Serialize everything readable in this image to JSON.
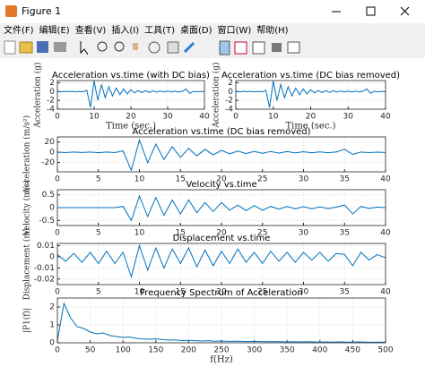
{
  "window": {
    "title": "Figure 1"
  },
  "menu": [
    "文件(F)",
    "编辑(E)",
    "查看(V)",
    "插入(I)",
    "工具(T)",
    "桌面(D)",
    "窗口(W)",
    "帮助(H)"
  ],
  "chart_data": [
    {
      "type": "line",
      "title": "Acceleration vs.time (with DC bias)",
      "x_label": "Time (sec.)",
      "y_label": "Acceleration (g)",
      "color": "#0072bd",
      "grid": true,
      "xlim": [
        0,
        40
      ],
      "xticks": [
        0,
        10,
        20,
        30,
        40
      ],
      "ylim": [
        -4,
        2.5
      ],
      "yticks": [
        -4,
        -2,
        0,
        2
      ],
      "x": [
        0,
        1,
        2,
        3,
        4,
        5,
        6,
        7,
        8,
        9,
        10,
        11,
        12,
        13,
        14,
        15,
        16,
        17,
        18,
        19,
        20,
        21,
        22,
        23,
        24,
        25,
        26,
        27,
        28,
        29,
        30,
        31,
        32,
        33,
        34,
        35,
        36,
        37,
        38,
        39,
        40
      ],
      "values": [
        0.05,
        -0.05,
        0.06,
        -0.04,
        0.05,
        -0.06,
        0.05,
        -0.05,
        0.3,
        -3.6,
        2.4,
        -2.0,
        1.6,
        -1.4,
        1.1,
        -1.0,
        0.8,
        -0.7,
        0.6,
        -0.5,
        0.4,
        -0.3,
        0.25,
        -0.25,
        0.2,
        -0.2,
        0.18,
        -0.15,
        0.15,
        -0.12,
        0.12,
        -0.1,
        0.1,
        -0.1,
        0.08,
        0.6,
        -0.4,
        0.06,
        -0.05,
        0.04,
        -0.03
      ]
    },
    {
      "type": "line",
      "title": "Acceleration vs.time (DC bias removed)",
      "x_label": "Time (sec.)",
      "y_label": "Acceleration (g)",
      "color": "#0072bd",
      "grid": true,
      "xlim": [
        0,
        40
      ],
      "xticks": [
        0,
        10,
        20,
        30,
        40
      ],
      "ylim": [
        -4,
        2.5
      ],
      "yticks": [
        -4,
        -2,
        0,
        2
      ],
      "x": [
        0,
        1,
        2,
        3,
        4,
        5,
        6,
        7,
        8,
        9,
        10,
        11,
        12,
        13,
        14,
        15,
        16,
        17,
        18,
        19,
        20,
        21,
        22,
        23,
        24,
        25,
        26,
        27,
        28,
        29,
        30,
        31,
        32,
        33,
        34,
        35,
        36,
        37,
        38,
        39,
        40
      ],
      "values": [
        0.05,
        -0.05,
        0.06,
        -0.04,
        0.05,
        -0.06,
        0.05,
        -0.05,
        0.3,
        -3.6,
        2.4,
        -2.0,
        1.6,
        -1.4,
        1.1,
        -1.0,
        0.8,
        -0.7,
        0.6,
        -0.5,
        0.4,
        -0.3,
        0.25,
        -0.25,
        0.2,
        -0.2,
        0.18,
        -0.15,
        0.15,
        -0.12,
        0.12,
        -0.1,
        0.1,
        -0.1,
        0.08,
        0.6,
        -0.4,
        0.06,
        -0.05,
        0.04,
        -0.03
      ]
    },
    {
      "type": "line",
      "title": "Acceleration vs.time (DC bias removed)",
      "y_label": "Acceleration (m/s²)",
      "color": "#0072bd",
      "grid": true,
      "xlim": [
        0,
        40
      ],
      "xticks": [
        0,
        5,
        10,
        15,
        20,
        25,
        30,
        35,
        40
      ],
      "ylim": [
        -38,
        30
      ],
      "yticks": [
        -20,
        0,
        20
      ],
      "x": [
        0,
        1,
        2,
        3,
        4,
        5,
        6,
        7,
        8,
        9,
        10,
        11,
        12,
        13,
        14,
        15,
        16,
        17,
        18,
        19,
        20,
        21,
        22,
        23,
        24,
        25,
        26,
        27,
        28,
        29,
        30,
        31,
        32,
        33,
        34,
        35,
        36,
        37,
        38,
        39,
        40
      ],
      "values": [
        0.5,
        -0.5,
        0.6,
        -0.4,
        0.5,
        -0.6,
        0.5,
        -0.5,
        3,
        -35,
        24,
        -20,
        16,
        -14,
        11,
        -10,
        8,
        -7,
        6,
        -5,
        4,
        -3,
        2.5,
        -2.5,
        2,
        -2,
        1.8,
        -1.5,
        1.5,
        -1.2,
        1.2,
        -1,
        1,
        -1,
        0.8,
        6,
        -4,
        0.6,
        -0.5,
        0.4,
        -0.3
      ]
    },
    {
      "type": "line",
      "title": "Velocity vs.time",
      "y_label": "Velocity (m/s)",
      "color": "#0072bd",
      "grid": true,
      "xlim": [
        0,
        40
      ],
      "xticks": [
        0,
        5,
        10,
        15,
        20,
        25,
        30,
        35,
        40
      ],
      "ylim": [
        -0.7,
        0.7
      ],
      "yticks": [
        -0.5,
        0,
        0.5
      ],
      "x": [
        0,
        1,
        2,
        3,
        4,
        5,
        6,
        7,
        8,
        9,
        10,
        11,
        12,
        13,
        14,
        15,
        16,
        17,
        18,
        19,
        20,
        21,
        22,
        23,
        24,
        25,
        26,
        27,
        28,
        29,
        30,
        31,
        32,
        33,
        34,
        35,
        36,
        37,
        38,
        39,
        40
      ],
      "values": [
        0,
        0,
        0,
        0,
        0,
        0,
        0,
        0,
        0.05,
        -0.5,
        0.45,
        -0.35,
        0.4,
        -0.3,
        0.3,
        -0.25,
        0.3,
        -0.2,
        0.2,
        -0.15,
        0.2,
        -0.1,
        0.1,
        -0.12,
        0.08,
        -0.1,
        0.05,
        -0.06,
        0.05,
        -0.05,
        0.04,
        -0.05,
        0.03,
        -0.04,
        0.02,
        0.1,
        -0.25,
        0.05,
        -0.03,
        0.02,
        0
      ]
    },
    {
      "type": "line",
      "title": "Displacement vs.time",
      "y_label": "Displacement (m)",
      "color": "#0072bd",
      "grid": true,
      "xlim": [
        0,
        40
      ],
      "xticks": [
        0,
        5,
        10,
        15,
        20,
        25,
        30,
        35,
        40
      ],
      "ylim": [
        -0.025,
        0.012
      ],
      "yticks": [
        -0.02,
        -0.01,
        0,
        0.01
      ],
      "x": [
        0,
        1,
        2,
        3,
        4,
        5,
        6,
        7,
        8,
        9,
        10,
        11,
        12,
        13,
        14,
        15,
        16,
        17,
        18,
        19,
        20,
        21,
        22,
        23,
        24,
        25,
        26,
        27,
        28,
        29,
        30,
        31,
        32,
        33,
        34,
        35,
        36,
        37,
        38,
        39,
        40
      ],
      "values": [
        0.002,
        -0.004,
        0.003,
        -0.005,
        0.004,
        -0.006,
        0.005,
        -0.006,
        0.004,
        -0.018,
        0.01,
        -0.012,
        0.008,
        -0.01,
        0.007,
        -0.006,
        0.008,
        -0.009,
        0.006,
        -0.008,
        0.005,
        -0.006,
        0.007,
        -0.005,
        0.004,
        -0.006,
        0.005,
        -0.004,
        0.004,
        -0.005,
        0.004,
        -0.003,
        0.004,
        -0.004,
        0.003,
        0.002,
        -0.008,
        0.004,
        -0.003,
        0.002,
        -0.001
      ]
    },
    {
      "type": "line",
      "title": "Frequency Spectrum of Acceleration",
      "x_label": "f(Hz)",
      "y_label": "|P1(f)|",
      "color": "#0072bd",
      "grid": true,
      "xlim": [
        0,
        500
      ],
      "xticks": [
        0,
        50,
        100,
        150,
        200,
        250,
        300,
        350,
        400,
        450,
        500
      ],
      "ylim": [
        0,
        2.5
      ],
      "yticks": [
        0,
        1,
        2
      ],
      "x": [
        0,
        10,
        20,
        30,
        40,
        50,
        60,
        70,
        80,
        90,
        100,
        110,
        120,
        130,
        140,
        150,
        160,
        170,
        180,
        190,
        200,
        210,
        220,
        230,
        240,
        250,
        260,
        270,
        280,
        290,
        300,
        310,
        320,
        330,
        340,
        350,
        360,
        370,
        380,
        390,
        400,
        410,
        420,
        430,
        440,
        450,
        460,
        470,
        480,
        490,
        500
      ],
      "values": [
        0.1,
        2.2,
        1.4,
        0.9,
        0.8,
        0.6,
        0.5,
        0.55,
        0.4,
        0.35,
        0.3,
        0.32,
        0.25,
        0.22,
        0.2,
        0.22,
        0.18,
        0.15,
        0.16,
        0.12,
        0.14,
        0.12,
        0.1,
        0.11,
        0.09,
        0.1,
        0.08,
        0.09,
        0.08,
        0.07,
        0.08,
        0.07,
        0.06,
        0.07,
        0.06,
        0.05,
        0.06,
        0.05,
        0.06,
        0.05,
        0.04,
        0.05,
        0.04,
        0.05,
        0.04,
        0.04,
        0.05,
        0.04,
        0.03,
        0.04,
        0.03
      ]
    }
  ]
}
